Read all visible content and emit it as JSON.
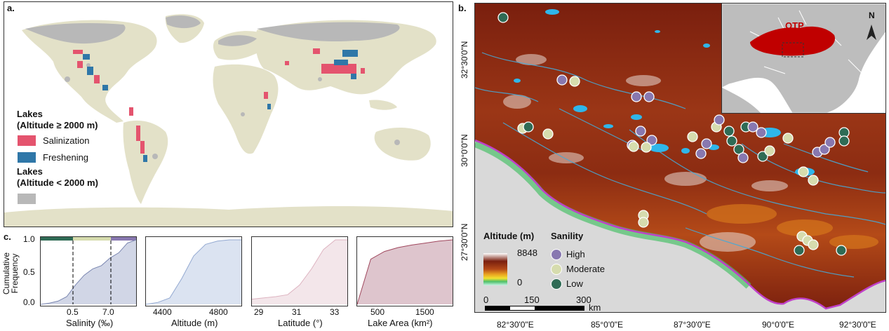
{
  "panel_a": {
    "letter": "a.",
    "legend": {
      "group1_title_line1": "Lakes",
      "group1_title_line2": "(Altitude ≥ 2000 m)",
      "salinization": "Salinization",
      "freshening": "Freshening",
      "group2_title_line1": "Lakes",
      "group2_title_line2": "(Altitude < 2000 m)"
    },
    "colors": {
      "salinization": "#e4546e",
      "freshening": "#2f77a8",
      "low_altitude": "#b8b8b8",
      "land": "#e3e1c8",
      "ocean": "#ffffff"
    }
  },
  "panel_b": {
    "letter": "b.",
    "inset": {
      "label": "QTP",
      "north": "N"
    },
    "altitude_legend": {
      "title": "Altitude (m)",
      "max": "8848",
      "min": "0"
    },
    "sanility_legend": {
      "title": "Sanility",
      "items": [
        "High",
        "Moderate",
        "Low"
      ]
    },
    "sanility_colors": {
      "High": "#8878b0",
      "Moderate": "#d6dcae",
      "Low": "#2f6b55"
    },
    "scalebar": {
      "labels": [
        "0",
        "150",
        "300"
      ],
      "unit": "km"
    },
    "lon_labels": [
      "82°30'0\"E",
      "85°0'0\"E",
      "87°30'0\"E",
      "90°0'0\"E",
      "92°30'0\"E"
    ],
    "lat_labels": [
      "32°30'0\"N",
      "30°0'0\"N",
      "27°30'0\"N"
    ],
    "lake_color": "#2fb6ea"
  },
  "panel_c": {
    "letter": "c.",
    "ylabel_line1": "Cumulative",
    "ylabel_line2": "Frequency",
    "yticks": [
      "1.0",
      "0.5",
      "0.0"
    ],
    "plots": [
      {
        "xlabel": "Salinity (‰)",
        "xticks": [
          "0.5",
          "7.0"
        ],
        "fill": "#d1d6e6",
        "stroke": "#7a86b0"
      },
      {
        "xlabel": "Altitude (m)",
        "xticks": [
          "4400",
          "4800"
        ],
        "fill": "#dbe3f1",
        "stroke": "#93a9d1"
      },
      {
        "xlabel": "Latitude (°)",
        "xticks": [
          "29",
          "31",
          "33"
        ],
        "fill": "#f3e6ea",
        "stroke": "#ddb3c0"
      },
      {
        "xlabel": "Lake Area (km²)",
        "xticks": [
          "500",
          "1500"
        ],
        "fill": "#dec5cd",
        "stroke": "#a0485e"
      }
    ]
  },
  "chart_data": [
    {
      "type": "area",
      "xlabel": "Salinity (‰)",
      "ylabel": "Cumulative Frequency",
      "ylim": [
        0,
        1
      ],
      "series": [
        {
          "values": [
            0,
            0.02,
            0.05,
            0.12,
            0.3,
            0.45,
            0.55,
            0.6,
            0.72,
            0.8,
            0.95,
            1.0
          ]
        }
      ]
    },
    {
      "type": "area",
      "xlabel": "Altitude (m)",
      "ylabel": "Cumulative Frequency",
      "ylim": [
        0,
        1
      ],
      "series": [
        {
          "values": [
            0,
            0.03,
            0.1,
            0.4,
            0.75,
            0.93,
            0.98,
            1.0,
            1.0
          ]
        }
      ]
    },
    {
      "type": "area",
      "xlabel": "Latitude (°)",
      "ylabel": "Cumulative Frequency",
      "ylim": [
        0,
        1
      ],
      "series": [
        {
          "values": [
            0.08,
            0.1,
            0.12,
            0.15,
            0.3,
            0.55,
            0.85,
            1.0,
            1.0
          ]
        }
      ]
    },
    {
      "type": "area",
      "xlabel": "Lake Area (km²)",
      "ylabel": "Cumulative Frequency",
      "ylim": [
        0,
        1
      ],
      "series": [
        {
          "values": [
            0,
            0.7,
            0.82,
            0.88,
            0.92,
            0.95,
            0.98,
            1.0
          ]
        }
      ]
    }
  ]
}
